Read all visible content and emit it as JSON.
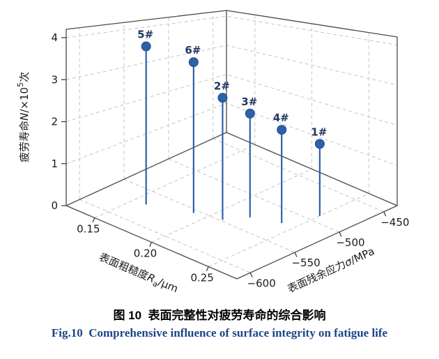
{
  "figure": {
    "caption_zh": "图 10  表面完整性对疲劳寿命的综合影响",
    "caption_en": "Fig.10  Comprehensive influence of surface integrity on fatigue life"
  },
  "chart_data": {
    "type": "scatter",
    "subtype": "3d-stem",
    "title": "",
    "points": [
      {
        "label": "5#",
        "ra": 0.16,
        "sigma": -570,
        "n": 4.05
      },
      {
        "label": "6#",
        "ra": 0.19,
        "sigma": -555,
        "n": 3.9
      },
      {
        "label": "2#",
        "ra": 0.21,
        "sigma": -548,
        "n": 3.15
      },
      {
        "label": "3#",
        "ra": 0.22,
        "sigma": -530,
        "n": 2.7
      },
      {
        "label": "4#",
        "ra": 0.24,
        "sigma": -520,
        "n": 2.4
      },
      {
        "label": "1#",
        "ra": 0.25,
        "sigma": -490,
        "n": 1.85
      }
    ],
    "axes": {
      "z": {
        "label": "疲劳寿命N/×10⁵次",
        "label_parts": [
          {
            "t": "疲劳寿命"
          },
          {
            "t": "N",
            "i": true
          },
          {
            "t": "/×10"
          },
          {
            "t": "5",
            "sup": true
          },
          {
            "t": "次"
          }
        ],
        "ticks": [
          0,
          1,
          2,
          3,
          4
        ],
        "tick_labels": [
          "0",
          "1",
          "2",
          "3",
          "4"
        ],
        "range": [
          0,
          4.2
        ]
      },
      "ra": {
        "label": "表面粗糙度Ra/μm",
        "label_parts": [
          {
            "t": "表面粗糙度"
          },
          {
            "t": "R",
            "i": true
          },
          {
            "t": "a",
            "sub": true
          },
          {
            "t": "/μm"
          }
        ],
        "ticks": [
          0.15,
          0.2,
          0.25
        ],
        "tick_labels": [
          "0.15",
          "0.20",
          "0.25"
        ],
        "range": [
          0.125,
          0.275
        ]
      },
      "sigma": {
        "label": "表面残余应力σ/MPa",
        "label_parts": [
          {
            "t": "表面残余应力"
          },
          {
            "t": "σ",
            "i": true
          },
          {
            "t": "/MPa"
          }
        ],
        "ticks": [
          -600,
          -550,
          -500,
          -450
        ],
        "tick_labels": [
          "−600",
          "−550",
          "−500",
          "−450"
        ],
        "range": [
          -615,
          -435
        ]
      }
    },
    "grid": true,
    "legend": "none",
    "colors": {
      "stem": "#2d61a8",
      "marker": "#2d61a8",
      "marker_edge": "#1f4c8c",
      "point_label": "#1f3864",
      "grid": "#c4c4c4",
      "box_edge": "#4a4a4a"
    }
  }
}
